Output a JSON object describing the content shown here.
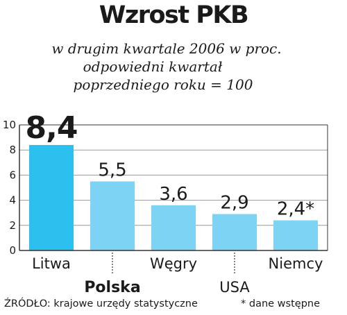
{
  "header": {
    "title": "Wzrost PKB",
    "subtitle_line1": "w drugim kwartale 2006 w proc.",
    "subtitle_line2": "odpowiedni kwartał",
    "subtitle_line3": "poprzedniego roku = 100"
  },
  "footer": {
    "source": "ŹRÓDŁO: krajowe urzędy statystyczne",
    "note": "* dane wstępne"
  },
  "colors": {
    "bar_highlight": "#2cc0ee",
    "bar_normal": "#7dd3f3",
    "grid": "#999999",
    "frame": "#333333"
  },
  "chart_data": {
    "type": "bar",
    "categories": [
      "Litwa",
      "Polska",
      "Węgry",
      "USA",
      "Niemcy"
    ],
    "values": [
      8.4,
      5.5,
      3.6,
      2.9,
      2.4
    ],
    "value_labels": [
      "8,4",
      "5,5",
      "3,6",
      "2,9",
      "2,4*"
    ],
    "highlighted": [
      "Litwa"
    ],
    "label_rows": [
      "top",
      "bottom",
      "top",
      "bottom",
      "top"
    ],
    "bold_categories": [
      "Polska"
    ],
    "yticks": [
      "0",
      "2",
      "4",
      "6",
      "8",
      "10"
    ],
    "ylim": [
      0,
      10
    ],
    "grid": true,
    "title": "Wzrost PKB",
    "xlabel": "",
    "ylabel": ""
  }
}
